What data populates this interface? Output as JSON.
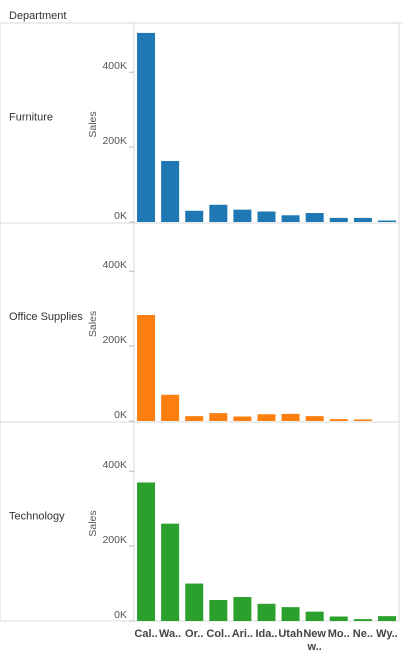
{
  "header": {
    "column_label": "Department"
  },
  "chart_data": {
    "type": "bar",
    "layout": "small-multiples",
    "facet_label": "Department",
    "ylabel": "Sales",
    "ylim": [
      0,
      500000
    ],
    "yticks": [
      0,
      200000,
      400000
    ],
    "ytick_labels": [
      "0K",
      "200K",
      "400K"
    ],
    "grid": false,
    "categories": [
      "Cal..",
      "Wa..",
      "Or..",
      "Col..",
      "Ari..",
      "Ida..",
      "Utah",
      "New\nw..",
      "Mo..",
      "Ne..",
      "Wy.."
    ],
    "panels": [
      {
        "department": "Furniture",
        "color": "#1f77b4",
        "values": [
          505000,
          163000,
          30000,
          46000,
          33000,
          28000,
          18000,
          24000,
          11000,
          11000,
          4000
        ]
      },
      {
        "department": "Office Supplies",
        "color": "#ff7f0e",
        "values": [
          283000,
          70000,
          13000,
          21000,
          12000,
          18000,
          19000,
          13000,
          5000,
          4000,
          0
        ]
      },
      {
        "department": "Technology",
        "color": "#2ca02c",
        "values": [
          370000,
          260000,
          100000,
          56000,
          64000,
          46000,
          37000,
          25000,
          12000,
          5000,
          13000
        ]
      }
    ]
  }
}
